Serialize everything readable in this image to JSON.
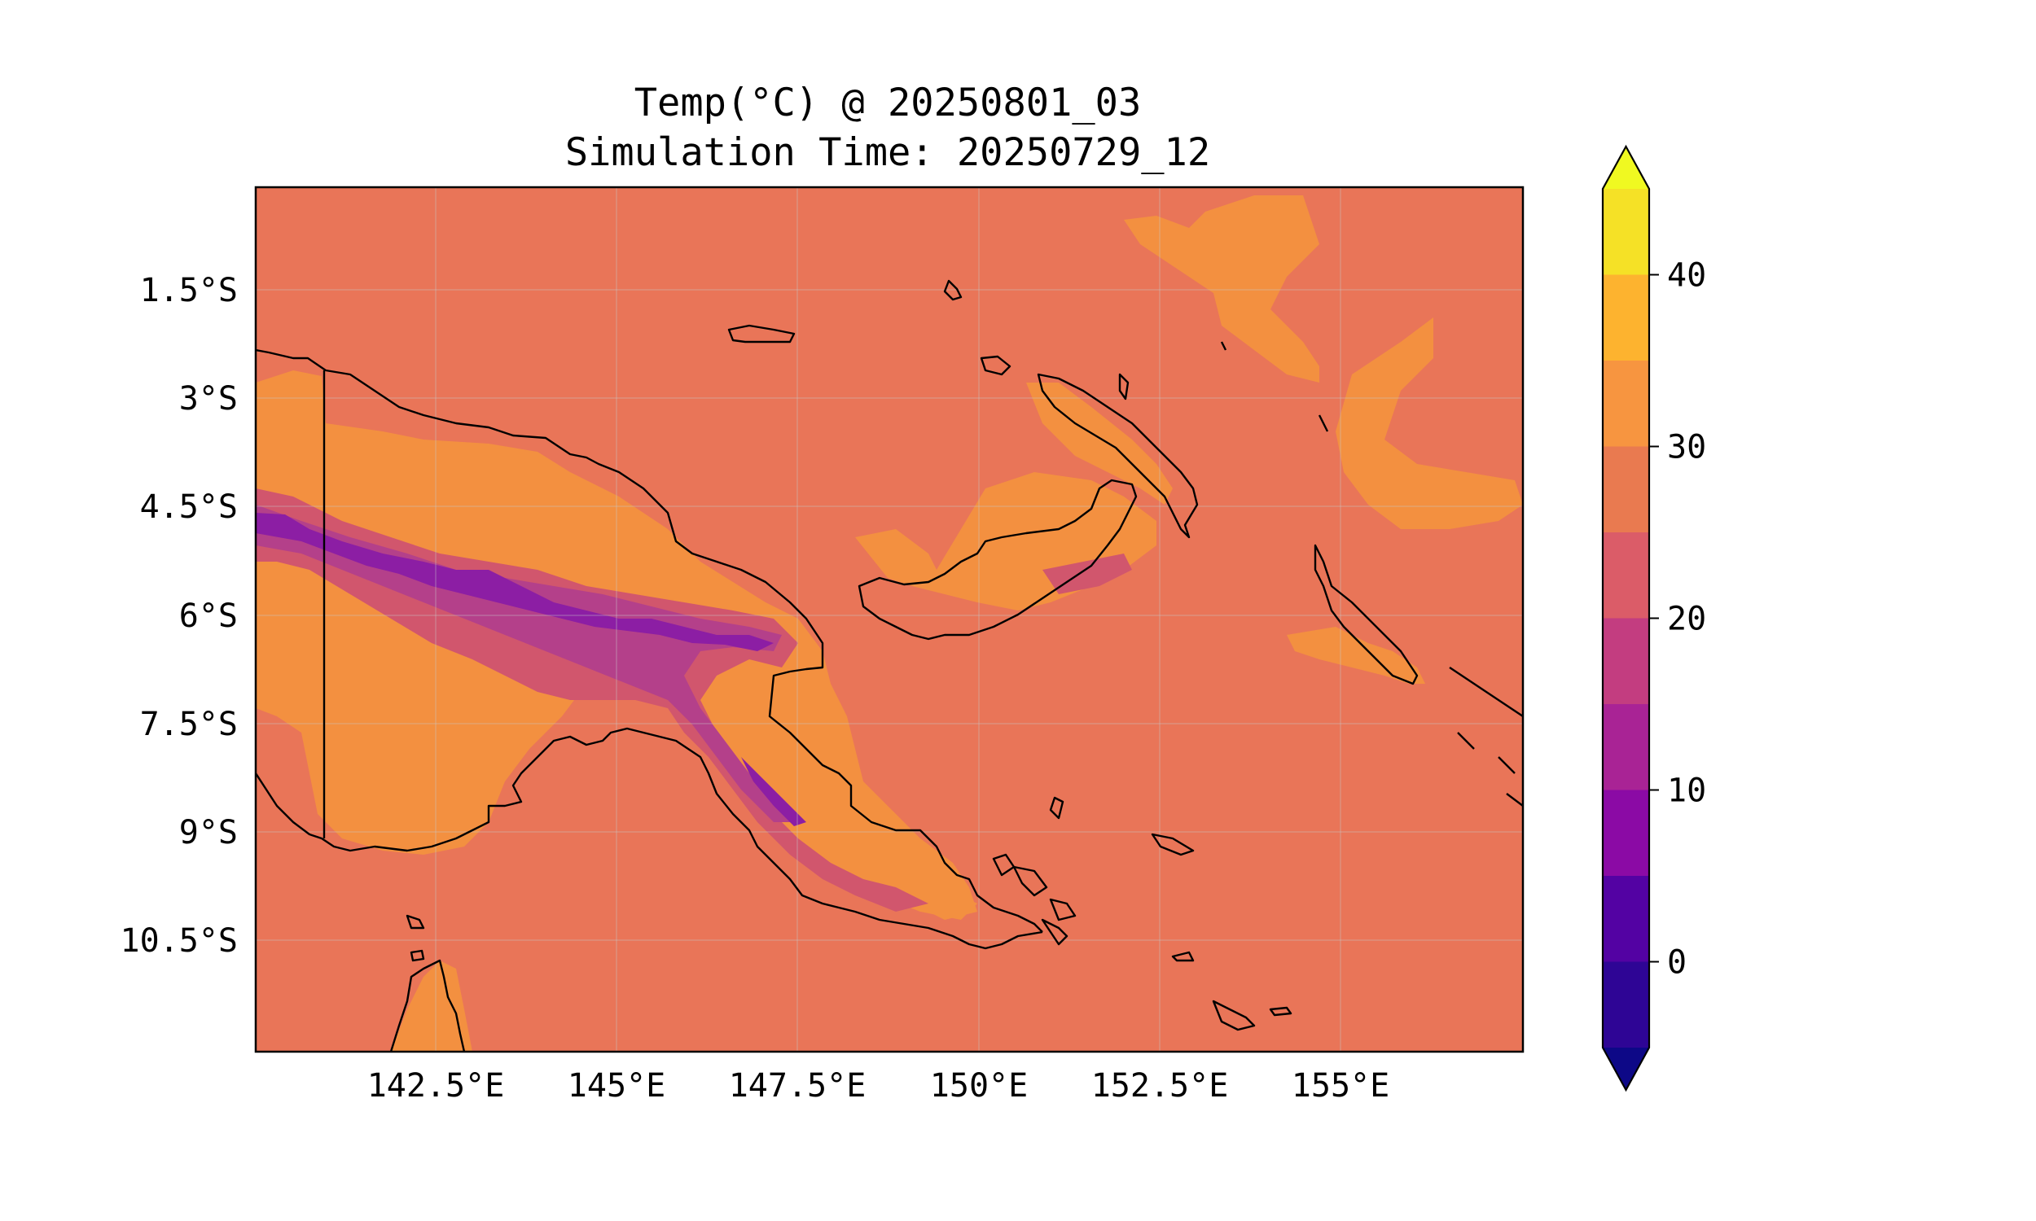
{
  "map": {
    "title_line1": "Temp(°C) @ 20250801_03",
    "title_line2": "Simulation Time: 20250729_12",
    "lon_labels": [
      "142.5°E",
      "145°E",
      "147.5°E",
      "150°E",
      "152.5°E",
      "155°E"
    ],
    "lat_labels": [
      "1.5°S",
      "3°S",
      "4.5°S",
      "6°S",
      "7.5°S",
      "9°S",
      "10.5°S"
    ],
    "extent": {
      "lon_min": 140.0,
      "lon_max": 157.5,
      "lat_min": -12.0,
      "lat_max": 0.0
    },
    "variable": "Temp(°C)",
    "gridlines": true
  },
  "colorbar": {
    "tick_labels": [
      "0",
      "10",
      "20",
      "30",
      "40"
    ],
    "levels": [
      -5,
      0,
      5,
      10,
      15,
      20,
      25,
      30,
      35,
      40,
      45
    ],
    "extend": "both",
    "colors": {
      "under": "#0d0887",
      "bands": [
        "#2e0595",
        "#5302a3",
        "#8b0aa5",
        "#a92395",
        "#c33d80",
        "#db5c68",
        "#e97a50",
        "#f79540",
        "#fdb32f",
        "#f5e126"
      ],
      "over": "#f0f921"
    }
  },
  "colors": {
    "background_field": "#e97558",
    "warm_field": "#f39040",
    "cool_field_1": "#d1566d",
    "cool_field_2": "#b4408a",
    "cool_field_3": "#8c1ea4",
    "coastline": "#000000"
  }
}
